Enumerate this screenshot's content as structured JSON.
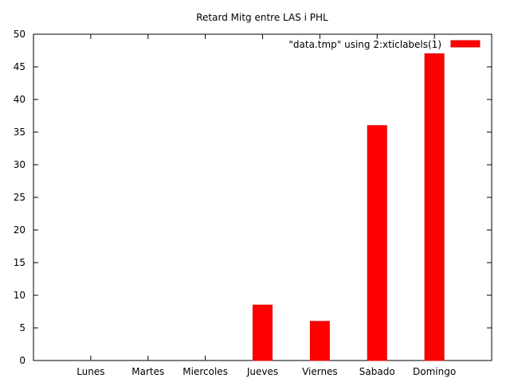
{
  "chart_data": {
    "type": "bar",
    "title": "Retard Mitg entre LAS i PHL",
    "xlabel": "",
    "ylabel": "",
    "categories": [
      "Lunes",
      "Martes",
      "Miercoles",
      "Jueves",
      "Viernes",
      "Sabado",
      "Domingo"
    ],
    "series": [
      {
        "name": "\"data.tmp\" using 2:xticlabels(1)",
        "values": [
          0,
          0,
          0,
          8.5,
          6,
          36,
          47
        ]
      }
    ],
    "ylim": [
      0,
      50
    ],
    "yticks": [
      "0",
      "5",
      "10",
      "15",
      "20",
      "25",
      "30",
      "35",
      "40",
      "45",
      "50"
    ],
    "grid": false,
    "legend_position": "top-right",
    "bar_color": "#ff0000"
  }
}
